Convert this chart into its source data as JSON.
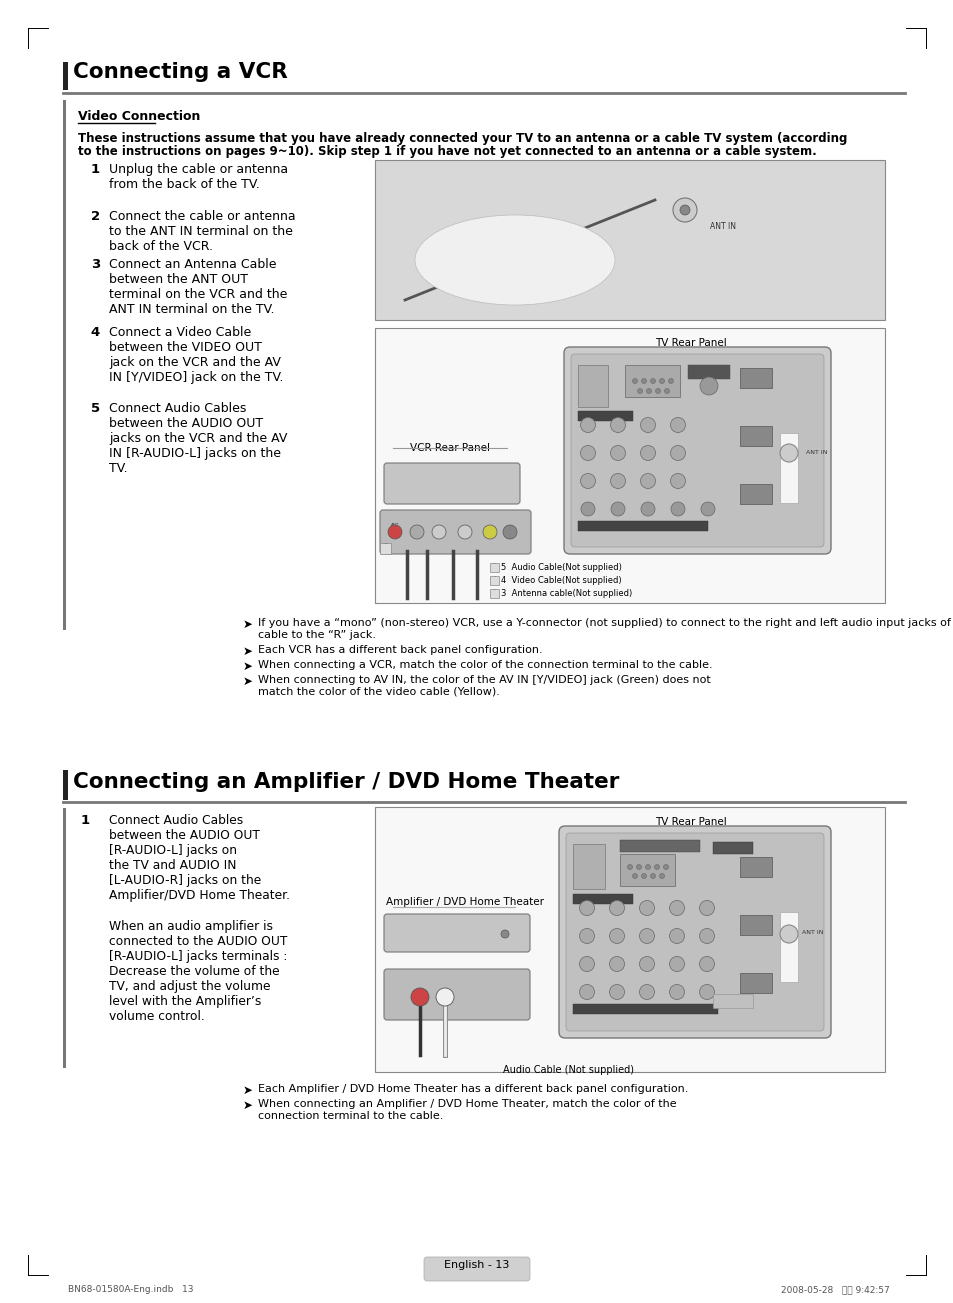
{
  "page_bg": "#ffffff",
  "section1_title": "Connecting a VCR",
  "subsection1_title": "Video Connection",
  "intro_text_line1": "These instructions assume that you have already connected your TV to an antenna or a cable TV system (according",
  "intro_text_line2": "to the instructions on pages 9~10). Skip step 1 if you have not yet connected to an antenna or a cable system.",
  "steps_vcr": [
    {
      "num": "1",
      "text": "Unplug the cable or antenna\nfrom the back of the TV."
    },
    {
      "num": "2",
      "text": "Connect the cable or antenna\nto the ANT IN terminal on the\nback of the VCR."
    },
    {
      "num": "3",
      "text": "Connect an Antenna Cable\nbetween the ANT OUT\nterminal on the VCR and the\nANT IN terminal on the TV."
    },
    {
      "num": "4",
      "text": "Connect a Video Cable\nbetween the VIDEO OUT\njack on the VCR and the AV\nIN [Y/VIDEO] jack on the TV."
    },
    {
      "num": "5",
      "text": "Connect Audio Cables\nbetween the AUDIO OUT\njacks on the VCR and the AV\nIN [R-AUDIO-L] jacks on the\nTV."
    }
  ],
  "notes_vcr": [
    "If you have a “mono” (non-stereo) VCR, use a Y-connector (not supplied) to connect to the right and left audio input jacks of the TV. Alternatively, connect the\ncable to the “R” jack.",
    "Each VCR has a different back panel configuration.",
    "When connecting a VCR, match the color of the connection terminal to the cable.",
    "When connecting to AV IN, the color of the AV IN [Y/VIDEO] jack (Green) does not\nmatch the color of the video cable (Yellow)."
  ],
  "section2_title": "Connecting an Amplifier / DVD Home Theater",
  "steps_amp_text": "Connect Audio Cables\nbetween the AUDIO OUT\n[R-AUDIO-L] jacks on\nthe TV and AUDIO IN\n[L-AUDIO-R] jacks on the\nAmplifier/DVD Home Theater.",
  "steps_amp_text2": "When an audio amplifier is\nconnected to the AUDIO OUT\n[R-AUDIO-L] jacks terminals :\nDecrease the volume of the\nTV, and adjust the volume\nlevel with the Amplifier’s\nvolume control.",
  "notes_amp": [
    "Each Amplifier / DVD Home Theater has a different back panel configuration.",
    "When connecting an Amplifier / DVD Home Theater, match the color of the\nconnection terminal to the cable."
  ],
  "footer_text": "English - 13",
  "bottom_left": "BN68-01580A-Eng.indb   13",
  "bottom_right": "2008-05-28   오후 9:42:57",
  "diagram1_tv_label": "TV Rear Panel",
  "diagram1_vcr_label": "VCR Rear Panel",
  "diagram1_cable1": "5  Audio Cable(Not supplied)",
  "diagram1_cable2": "4  Video Cable(Not supplied)",
  "diagram1_cable3": "3  Antenna cable(Not supplied)",
  "diagram2_tv_label": "TV Rear Panel",
  "diagram2_amp_label": "Amplifier / DVD Home Theater",
  "diagram2_cable_label": "Audio Cable (Not supplied)"
}
